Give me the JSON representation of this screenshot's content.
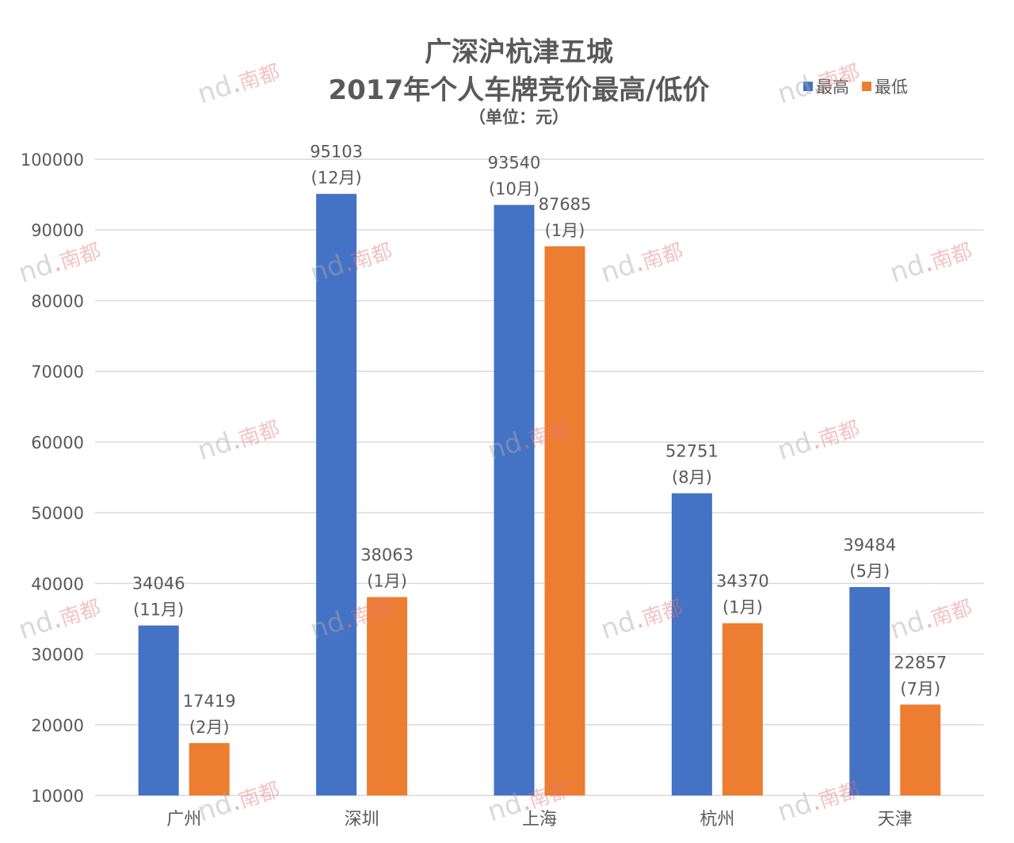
{
  "title": {
    "line1": "广深沪杭津五城",
    "line2": "2017年个人车牌竞价最高/低价",
    "line3": "（单位：元）"
  },
  "legend": [
    {
      "name": "最高",
      "color": "#4472C4"
    },
    {
      "name": "最低",
      "color": "#ED7D31"
    }
  ],
  "watermark": {
    "text": "nd",
    "dot": ".",
    "cn": "南都"
  },
  "chart_data": {
    "type": "bar",
    "categories": [
      "广州",
      "深圳",
      "上海",
      "杭州",
      "天津"
    ],
    "series": [
      {
        "name": "最高",
        "color": "#4472C4",
        "values": [
          34046,
          95103,
          93540,
          52751,
          39484
        ],
        "labels": [
          "(11月)",
          "(12月)",
          "(10月)",
          "(8月)",
          "(5月)"
        ]
      },
      {
        "name": "最低",
        "color": "#ED7D31",
        "values": [
          17419,
          38063,
          87685,
          34370,
          22857
        ],
        "labels": [
          "(2月)",
          "(1月)",
          "(1月)",
          "(1月)",
          "(7月)"
        ]
      }
    ],
    "ylim": [
      10000,
      100000
    ],
    "yticks": [
      10000,
      20000,
      30000,
      40000,
      50000,
      60000,
      70000,
      80000,
      90000,
      100000
    ],
    "grid": true,
    "legend_position": "top-right"
  }
}
